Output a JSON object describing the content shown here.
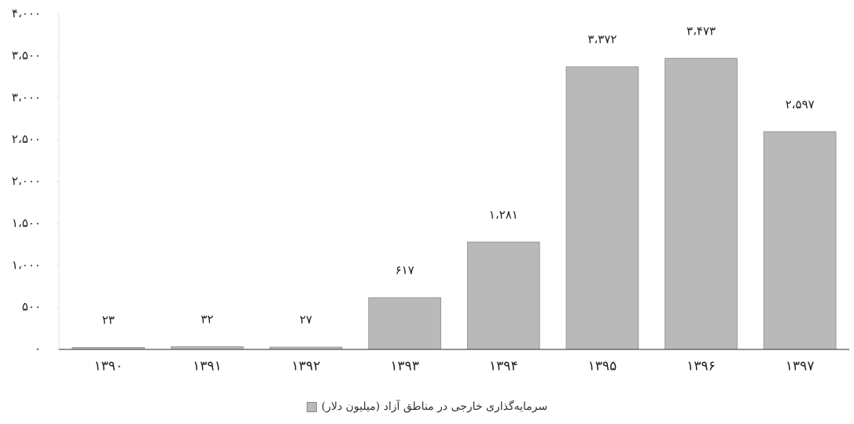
{
  "chart_data": {
    "type": "bar",
    "categories": [
      "۱۳۹۰",
      "۱۳۹۱",
      "۱۳۹۲",
      "۱۳۹۳",
      "۱۳۹۴",
      "۱۳۹۵",
      "۱۳۹۶",
      "۱۳۹۷"
    ],
    "series": [
      {
        "name": "سرمایه‌گذاری خارجی در مناطق آزاد (میلیون دلار)",
        "color": "#b9b9b9",
        "values": [
          23,
          32,
          27,
          617,
          1281,
          3372,
          3473,
          2597
        ],
        "value_labels": [
          "۲۳",
          "۳۲",
          "۲۷",
          "۶۱۷",
          "۱،۲۸۱",
          "۳،۳۷۲",
          "۳،۴۷۳",
          "۲،۵۹۷"
        ]
      }
    ],
    "ylim": [
      0,
      4000
    ],
    "yticks": [
      {
        "value": 0,
        "label": "۰"
      },
      {
        "value": 500,
        "label": "۵۰۰"
      },
      {
        "value": 1000,
        "label": "۱،۰۰۰"
      },
      {
        "value": 1500,
        "label": "۱،۵۰۰"
      },
      {
        "value": 2000,
        "label": "۲،۰۰۰"
      },
      {
        "value": 2500,
        "label": "۲،۵۰۰"
      },
      {
        "value": 3000,
        "label": "۳،۰۰۰"
      },
      {
        "value": 3500,
        "label": "۳،۵۰۰"
      },
      {
        "value": 4000,
        "label": "۴،۰۰۰"
      }
    ],
    "grid": false,
    "legend": "bottom"
  }
}
